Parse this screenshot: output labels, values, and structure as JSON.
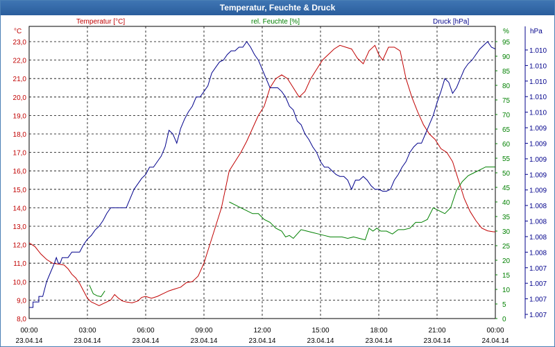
{
  "window": {
    "title": "Temperatur, Feuchte & Druck"
  },
  "colors": {
    "temperature": "#c00000",
    "humidity": "#008000",
    "pressure": "#00008b",
    "grid": "#000000",
    "titlebar": "#2f66a8"
  },
  "chart_data": {
    "type": "line",
    "title": "Temperatur, Feuchte & Druck",
    "x": [
      "00:00",
      "03:00",
      "06:00",
      "09:00",
      "12:00",
      "15:00",
      "18:00",
      "21:00",
      "00:00"
    ],
    "x_dates": [
      "23.04.14",
      "23.04.14",
      "23.04.14",
      "23.04.14",
      "23.04.14",
      "23.04.14",
      "23.04.14",
      "23.04.14",
      "24.04.14"
    ],
    "xlim_hours": [
      0,
      24
    ],
    "axes": {
      "left": {
        "unit": "°C",
        "label": "Temperatur [°C]",
        "ylim": [
          8.0,
          23.0
        ],
        "ticks": [
          "8,0",
          "9,0",
          "10,0",
          "11,0",
          "12,0",
          "13,0",
          "14,0",
          "15,0",
          "16,0",
          "17,0",
          "18,0",
          "19,0",
          "20,0",
          "21,0",
          "22,0",
          "23,0"
        ]
      },
      "right1": {
        "unit": "%",
        "label": "rel. Feuchte [%]",
        "ylim": [
          0,
          95
        ],
        "ticks": [
          "0",
          "5",
          "10",
          "15",
          "20",
          "25",
          "30",
          "35",
          "40",
          "45",
          "50",
          "55",
          "60",
          "65",
          "70",
          "75",
          "80",
          "85",
          "90",
          "95"
        ]
      },
      "right2": {
        "unit": "hPa",
        "label": "Druck [hPa]",
        "ticks": [
          "1.007",
          "1.007",
          "1.007",
          "1.007",
          "1.008",
          "1.008",
          "1.008",
          "1.008",
          "1.009",
          "1.009",
          "1.009",
          "1.009",
          "1.009",
          "1.010",
          "1.010",
          "1.010",
          "1.010",
          "1.010"
        ]
      }
    },
    "series": [
      {
        "name": "Temperatur [°C]",
        "axis": "left",
        "color": "#c00000",
        "points": [
          [
            0,
            12.1
          ],
          [
            0.3,
            11.9
          ],
          [
            0.6,
            11.5
          ],
          [
            0.9,
            11.2
          ],
          [
            1.2,
            11.0
          ],
          [
            1.5,
            10.95
          ],
          [
            1.8,
            10.9
          ],
          [
            2.0,
            10.7
          ],
          [
            2.2,
            10.4
          ],
          [
            2.4,
            10.2
          ],
          [
            2.6,
            9.9
          ],
          [
            2.8,
            9.5
          ],
          [
            3.0,
            9.1
          ],
          [
            3.2,
            8.9
          ],
          [
            3.4,
            8.8
          ],
          [
            3.6,
            8.7
          ],
          [
            3.8,
            8.8
          ],
          [
            4.0,
            8.9
          ],
          [
            4.2,
            9.0
          ],
          [
            4.4,
            9.3
          ],
          [
            4.6,
            9.1
          ],
          [
            4.8,
            8.95
          ],
          [
            5.0,
            8.9
          ],
          [
            5.3,
            8.85
          ],
          [
            5.6,
            8.95
          ],
          [
            5.8,
            9.15
          ],
          [
            6.0,
            9.2
          ],
          [
            6.3,
            9.1
          ],
          [
            6.6,
            9.2
          ],
          [
            6.9,
            9.35
          ],
          [
            7.2,
            9.5
          ],
          [
            7.5,
            9.6
          ],
          [
            7.8,
            9.7
          ],
          [
            8.1,
            9.95
          ],
          [
            8.4,
            10.0
          ],
          [
            8.7,
            10.3
          ],
          [
            9.0,
            11.0
          ],
          [
            9.3,
            12.0
          ],
          [
            9.6,
            13.0
          ],
          [
            9.9,
            14.0
          ],
          [
            10.1,
            15.0
          ],
          [
            10.3,
            16.0
          ],
          [
            10.6,
            16.5
          ],
          [
            10.9,
            17.0
          ],
          [
            11.2,
            17.6
          ],
          [
            11.5,
            18.3
          ],
          [
            11.8,
            19.0
          ],
          [
            12.1,
            19.5
          ],
          [
            12.4,
            20.5
          ],
          [
            12.7,
            21.0
          ],
          [
            13.0,
            21.2
          ],
          [
            13.3,
            21.0
          ],
          [
            13.6,
            20.5
          ],
          [
            13.9,
            20.0
          ],
          [
            14.2,
            20.3
          ],
          [
            14.5,
            21.0
          ],
          [
            14.8,
            21.5
          ],
          [
            15.1,
            22.0
          ],
          [
            15.4,
            22.3
          ],
          [
            15.7,
            22.6
          ],
          [
            16.0,
            22.8
          ],
          [
            16.3,
            22.7
          ],
          [
            16.6,
            22.6
          ],
          [
            16.9,
            22.1
          ],
          [
            17.2,
            21.8
          ],
          [
            17.5,
            22.5
          ],
          [
            17.8,
            22.8
          ],
          [
            18.0,
            22.3
          ],
          [
            18.2,
            22.0
          ],
          [
            18.5,
            22.7
          ],
          [
            18.8,
            22.7
          ],
          [
            19.1,
            22.5
          ],
          [
            19.4,
            21.0
          ],
          [
            19.7,
            20.0
          ],
          [
            20.0,
            19.2
          ],
          [
            20.3,
            18.5
          ],
          [
            20.6,
            18.0
          ],
          [
            20.9,
            17.7
          ],
          [
            21.2,
            17.2
          ],
          [
            21.5,
            17.0
          ],
          [
            21.8,
            16.5
          ],
          [
            22.1,
            15.5
          ],
          [
            22.4,
            14.5
          ],
          [
            22.7,
            13.8
          ],
          [
            23.0,
            13.3
          ],
          [
            23.3,
            12.9
          ],
          [
            23.6,
            12.75
          ],
          [
            23.9,
            12.7
          ],
          [
            24.0,
            12.7
          ]
        ]
      },
      {
        "name": "rel. Feuchte [%]",
        "axis": "right1",
        "color": "#008000",
        "segments": [
          [
            [
              3.1,
              11.5
            ],
            [
              3.3,
              8.5
            ],
            [
              3.5,
              7.8
            ],
            [
              3.7,
              7.5
            ],
            [
              3.9,
              9.5
            ]
          ],
          [
            [
              10.3,
              40
            ],
            [
              10.6,
              39
            ],
            [
              10.9,
              38
            ],
            [
              11.2,
              37
            ],
            [
              11.5,
              36
            ],
            [
              11.8,
              36
            ],
            [
              12.1,
              34
            ],
            [
              12.4,
              33
            ],
            [
              12.7,
              31
            ],
            [
              13.0,
              30
            ],
            [
              13.2,
              28
            ],
            [
              13.4,
              28.5
            ],
            [
              13.6,
              27.5
            ],
            [
              13.8,
              29
            ],
            [
              14.0,
              30.5
            ],
            [
              14.3,
              30
            ],
            [
              14.6,
              29.5
            ],
            [
              14.9,
              29
            ],
            [
              15.2,
              28.5
            ],
            [
              15.5,
              28
            ],
            [
              15.8,
              28
            ],
            [
              16.1,
              28
            ],
            [
              16.4,
              27.5
            ],
            [
              16.7,
              28
            ],
            [
              17.0,
              27.5
            ],
            [
              17.3,
              27
            ],
            [
              17.5,
              31
            ],
            [
              17.7,
              30
            ],
            [
              17.9,
              31
            ],
            [
              18.1,
              30
            ],
            [
              18.4,
              30
            ],
            [
              18.7,
              29
            ],
            [
              19.0,
              30.5
            ],
            [
              19.3,
              30.5
            ],
            [
              19.6,
              31
            ],
            [
              19.9,
              33
            ],
            [
              20.2,
              33
            ],
            [
              20.5,
              34
            ],
            [
              20.8,
              38
            ],
            [
              21.1,
              37
            ],
            [
              21.4,
              36
            ],
            [
              21.7,
              38
            ],
            [
              22.0,
              44
            ],
            [
              22.3,
              47
            ],
            [
              22.6,
              49
            ],
            [
              22.9,
              50
            ],
            [
              23.2,
              51
            ],
            [
              23.5,
              52
            ],
            [
              23.8,
              52
            ],
            [
              24.0,
              52
            ]
          ]
        ]
      },
      {
        "name": "Druck [hPa]",
        "axis": "right2",
        "color": "#00008b",
        "points": [
          [
            0,
            8.6
          ],
          [
            0.2,
            8.6
          ],
          [
            0.2,
            8.9
          ],
          [
            0.5,
            8.9
          ],
          [
            0.5,
            9.2
          ],
          [
            0.7,
            9.2
          ],
          [
            0.9,
            10.0
          ],
          [
            1.1,
            10.5
          ],
          [
            1.3,
            11.0
          ],
          [
            1.4,
            11.3
          ],
          [
            1.5,
            11.0
          ],
          [
            1.6,
            11.0
          ],
          [
            1.7,
            11.3
          ],
          [
            1.8,
            11.3
          ],
          [
            2.0,
            11.3
          ],
          [
            2.2,
            11.6
          ],
          [
            2.4,
            11.6
          ],
          [
            2.6,
            11.6
          ],
          [
            2.8,
            12.0
          ],
          [
            3.0,
            12.3
          ],
          [
            3.2,
            12.5
          ],
          [
            3.4,
            12.8
          ],
          [
            3.6,
            13.0
          ],
          [
            3.8,
            13.3
          ],
          [
            4.0,
            13.7
          ],
          [
            4.2,
            14.0
          ],
          [
            4.6,
            14.0
          ],
          [
            5.0,
            14.0
          ],
          [
            5.2,
            14.5
          ],
          [
            5.4,
            15.0
          ],
          [
            5.6,
            15.3
          ],
          [
            5.8,
            15.6
          ],
          [
            6.0,
            15.8
          ],
          [
            6.2,
            16.2
          ],
          [
            6.4,
            16.2
          ],
          [
            6.6,
            16.5
          ],
          [
            6.8,
            16.8
          ],
          [
            7.0,
            17.3
          ],
          [
            7.2,
            18.2
          ],
          [
            7.4,
            18.0
          ],
          [
            7.6,
            17.5
          ],
          [
            7.8,
            18.3
          ],
          [
            8.0,
            18.8
          ],
          [
            8.2,
            19.2
          ],
          [
            8.4,
            19.5
          ],
          [
            8.6,
            20.0
          ],
          [
            8.8,
            20.0
          ],
          [
            9.0,
            20.3
          ],
          [
            9.2,
            20.6
          ],
          [
            9.4,
            21.3
          ],
          [
            9.6,
            21.6
          ],
          [
            9.8,
            21.9
          ],
          [
            10.0,
            22.0
          ],
          [
            10.2,
            22.3
          ],
          [
            10.4,
            22.5
          ],
          [
            10.6,
            22.5
          ],
          [
            10.8,
            22.7
          ],
          [
            11.0,
            22.7
          ],
          [
            11.2,
            23.0
          ],
          [
            11.4,
            22.7
          ],
          [
            11.6,
            22.3
          ],
          [
            11.8,
            22.0
          ],
          [
            12.0,
            21.5
          ],
          [
            12.2,
            21.0
          ],
          [
            12.4,
            20.5
          ],
          [
            12.6,
            20.5
          ],
          [
            12.8,
            20.5
          ],
          [
            13.0,
            20.3
          ],
          [
            13.2,
            20.0
          ],
          [
            13.4,
            19.5
          ],
          [
            13.6,
            19.3
          ],
          [
            13.8,
            18.7
          ],
          [
            14.0,
            18.5
          ],
          [
            14.2,
            18.0
          ],
          [
            14.4,
            17.7
          ],
          [
            14.6,
            17.3
          ],
          [
            14.8,
            17.0
          ],
          [
            15.0,
            16.5
          ],
          [
            15.2,
            16.2
          ],
          [
            15.4,
            16.2
          ],
          [
            15.6,
            16.0
          ],
          [
            15.8,
            15.8
          ],
          [
            16.0,
            15.7
          ],
          [
            16.2,
            15.7
          ],
          [
            16.4,
            15.5
          ],
          [
            16.6,
            15.0
          ],
          [
            16.8,
            15.5
          ],
          [
            17.0,
            15.5
          ],
          [
            17.2,
            15.7
          ],
          [
            17.4,
            15.5
          ],
          [
            17.6,
            15.2
          ],
          [
            17.8,
            15.0
          ],
          [
            18.0,
            15.0
          ],
          [
            18.2,
            14.9
          ],
          [
            18.4,
            14.9
          ],
          [
            18.6,
            15.0
          ],
          [
            18.8,
            15.5
          ],
          [
            19.0,
            15.8
          ],
          [
            19.2,
            16.2
          ],
          [
            19.4,
            16.5
          ],
          [
            19.6,
            17.0
          ],
          [
            19.8,
            17.3
          ],
          [
            20.0,
            17.5
          ],
          [
            20.2,
            17.5
          ],
          [
            20.4,
            18.0
          ],
          [
            20.6,
            18.5
          ],
          [
            20.8,
            19.0
          ],
          [
            21.0,
            19.7
          ],
          [
            21.2,
            20.3
          ],
          [
            21.4,
            21.0
          ],
          [
            21.6,
            20.8
          ],
          [
            21.8,
            20.2
          ],
          [
            22.0,
            20.5
          ],
          [
            22.2,
            21.0
          ],
          [
            22.4,
            21.5
          ],
          [
            22.6,
            21.8
          ],
          [
            22.8,
            22.0
          ],
          [
            23.0,
            22.3
          ],
          [
            23.2,
            22.6
          ],
          [
            23.4,
            22.8
          ],
          [
            23.6,
            23.0
          ],
          [
            23.8,
            22.7
          ],
          [
            24.0,
            22.6
          ]
        ]
      }
    ]
  }
}
